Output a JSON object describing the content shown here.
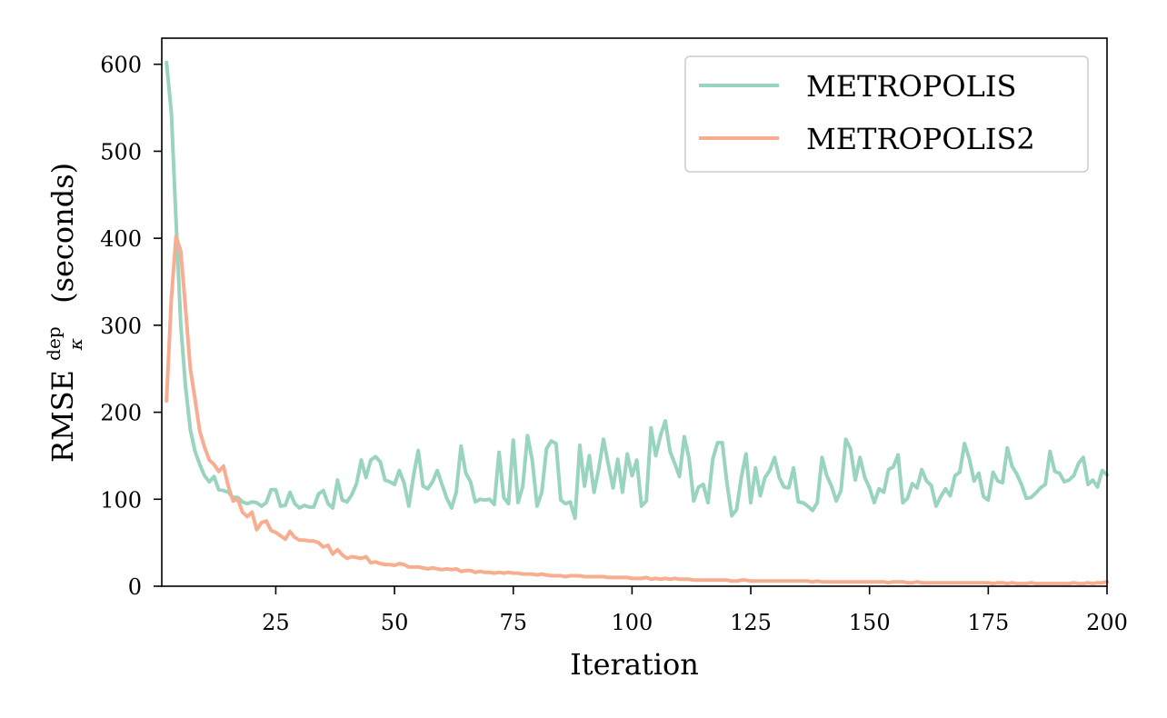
{
  "chart_data": {
    "type": "line",
    "title": "",
    "xlabel": "Iteration",
    "ylabel": {
      "main": "RMSE",
      "subscript": "κ",
      "superscript": "dep",
      "unit": "(seconds)"
    },
    "xlim": [
      1,
      200
    ],
    "ylim": [
      0,
      630
    ],
    "xticks": [
      25,
      50,
      75,
      100,
      125,
      150,
      175,
      200
    ],
    "yticks": [
      0,
      100,
      200,
      300,
      400,
      500,
      600
    ],
    "grid": false,
    "legend": "top-right",
    "series": [
      {
        "name": "METROPOLIS",
        "color": "#99d4bf",
        "x": [
          2,
          3,
          4,
          5,
          6,
          7,
          8,
          9,
          10,
          11,
          12,
          13,
          14,
          15,
          16,
          17,
          18,
          19,
          20,
          21,
          22,
          23,
          24,
          25,
          26,
          27,
          28,
          29,
          30,
          31,
          32,
          33,
          34,
          35,
          36,
          37,
          38,
          39,
          40,
          41,
          42,
          43,
          44,
          45,
          46,
          47,
          48,
          49,
          50,
          51,
          52,
          53,
          54,
          55,
          56,
          57,
          58,
          59,
          60,
          61,
          62,
          63,
          64,
          65,
          66,
          67,
          68,
          69,
          70,
          71,
          72,
          73,
          74,
          75,
          76,
          77,
          78,
          79,
          80,
          81,
          82,
          83,
          84,
          85,
          86,
          87,
          88,
          89,
          90,
          91,
          92,
          93,
          94,
          95,
          96,
          97,
          98,
          99,
          100,
          101,
          102,
          103,
          104,
          105,
          106,
          107,
          108,
          109,
          110,
          111,
          112,
          113,
          114,
          115,
          116,
          117,
          118,
          119,
          120,
          121,
          122,
          123,
          124,
          125,
          126,
          127,
          128,
          129,
          130,
          131,
          132,
          133,
          134,
          135,
          136,
          137,
          138,
          139,
          140,
          141,
          142,
          143,
          144,
          145,
          146,
          147,
          148,
          149,
          150,
          151,
          152,
          153,
          154,
          155,
          156,
          157,
          158,
          159,
          160,
          161,
          162,
          163,
          164,
          165,
          166,
          167,
          168,
          169,
          170,
          171,
          172,
          173,
          174,
          175,
          176,
          177,
          178,
          179,
          180,
          181,
          182,
          183,
          184,
          185,
          186,
          187,
          188,
          189,
          190,
          191,
          192,
          193,
          194,
          195,
          196,
          197,
          198,
          199,
          200
        ],
        "y": [
          602,
          545,
          420,
          300,
          230,
          180,
          155,
          140,
          127,
          120,
          126,
          111,
          110,
          108,
          102,
          102,
          97,
          95,
          97,
          96,
          92,
          96,
          111,
          111,
          92,
          93,
          108,
          95,
          90,
          93,
          91,
          91,
          106,
          110,
          95,
          90,
          122,
          99,
          97,
          105,
          118,
          145,
          125,
          145,
          149,
          143,
          122,
          120,
          117,
          133,
          119,
          92,
          127,
          156,
          115,
          112,
          120,
          133,
          117,
          101,
          90,
          108,
          161,
          130,
          120,
          97,
          100,
          99,
          100,
          94,
          154,
          102,
          95,
          168,
          96,
          115,
          173,
          145,
          92,
          108,
          158,
          167,
          164,
          99,
          95,
          97,
          78,
          162,
          115,
          150,
          108,
          135,
          169,
          140,
          113,
          146,
          108,
          152,
          127,
          145,
          92,
          98,
          182,
          150,
          173,
          190,
          155,
          141,
          126,
          172,
          147,
          98,
          114,
          117,
          96,
          146,
          165,
          165,
          118,
          81,
          88,
          125,
          152,
          96,
          136,
          104,
          125,
          133,
          148,
          125,
          114,
          113,
          136,
          97,
          96,
          92,
          87,
          96,
          148,
          127,
          115,
          98,
          110,
          169,
          158,
          122,
          148,
          125,
          113,
          96,
          112,
          108,
          134,
          137,
          151,
          96,
          101,
          118,
          113,
          134,
          121,
          116,
          92,
          103,
          112,
          104,
          127,
          131,
          164,
          147,
          121,
          130,
          103,
          99,
          131,
          121,
          119,
          159,
          138,
          129,
          117,
          101,
          102,
          107,
          113,
          117,
          155,
          132,
          130,
          120,
          122,
          127,
          141,
          148,
          117,
          122,
          114,
          133,
          128
        ]
      },
      {
        "name": "METROPOLIS2",
        "color": "#f7ae90",
        "x": [
          2,
          3,
          4,
          5,
          6,
          7,
          8,
          9,
          10,
          11,
          12,
          13,
          14,
          15,
          16,
          17,
          18,
          19,
          20,
          21,
          22,
          23,
          24,
          25,
          26,
          27,
          28,
          29,
          30,
          31,
          32,
          33,
          34,
          35,
          36,
          37,
          38,
          39,
          40,
          41,
          42,
          43,
          44,
          45,
          46,
          47,
          48,
          49,
          50,
          51,
          52,
          53,
          54,
          55,
          56,
          57,
          58,
          59,
          60,
          61,
          62,
          63,
          64,
          65,
          66,
          67,
          68,
          69,
          70,
          71,
          72,
          73,
          74,
          75,
          76,
          77,
          78,
          79,
          80,
          81,
          82,
          83,
          84,
          85,
          86,
          87,
          88,
          89,
          90,
          91,
          92,
          93,
          94,
          95,
          96,
          97,
          98,
          99,
          100,
          101,
          102,
          103,
          104,
          105,
          106,
          107,
          108,
          109,
          110,
          111,
          112,
          113,
          114,
          115,
          116,
          117,
          118,
          119,
          120,
          121,
          122,
          123,
          124,
          125,
          126,
          127,
          128,
          129,
          130,
          131,
          132,
          133,
          134,
          135,
          136,
          137,
          138,
          139,
          140,
          141,
          142,
          143,
          144,
          145,
          146,
          147,
          148,
          149,
          150,
          151,
          152,
          153,
          154,
          155,
          156,
          157,
          158,
          159,
          160,
          161,
          162,
          163,
          164,
          165,
          166,
          167,
          168,
          169,
          170,
          171,
          172,
          173,
          174,
          175,
          176,
          177,
          178,
          179,
          180,
          181,
          182,
          183,
          184,
          185,
          186,
          187,
          188,
          189,
          190,
          191,
          192,
          193,
          194,
          195,
          196,
          197,
          198,
          199,
          200
        ],
        "y": [
          213,
          330,
          402,
          385,
          320,
          250,
          215,
          178,
          160,
          145,
          140,
          132,
          138,
          115,
          98,
          100,
          85,
          80,
          85,
          65,
          73,
          75,
          64,
          62,
          58,
          54,
          63,
          56,
          53,
          53,
          52,
          52,
          50,
          45,
          47,
          37,
          42,
          36,
          32,
          34,
          33,
          32,
          34,
          27,
          28,
          26,
          25,
          25,
          24,
          26,
          25,
          22,
          22,
          22,
          21,
          20,
          21,
          20,
          19,
          20,
          19,
          20,
          17,
          18,
          18,
          16,
          17,
          16,
          16,
          15,
          16,
          15,
          16,
          15,
          15,
          14,
          14,
          14,
          13,
          14,
          13,
          12,
          12,
          12,
          11,
          12,
          12,
          12,
          11,
          11,
          11,
          11,
          11,
          10,
          10,
          10,
          10,
          10,
          9,
          9,
          9,
          10,
          8,
          9,
          8,
          9,
          8,
          9,
          8,
          8,
          8,
          7,
          7,
          7,
          7,
          7,
          7,
          7,
          7,
          6,
          6,
          7,
          7,
          6,
          6,
          6,
          6,
          6,
          6,
          6,
          6,
          6,
          6,
          6,
          6,
          6,
          5,
          6,
          5,
          5,
          5,
          5,
          5,
          5,
          5,
          5,
          5,
          5,
          5,
          5,
          5,
          5,
          4,
          5,
          5,
          5,
          4,
          4,
          5,
          4,
          4,
          4,
          4,
          4,
          4,
          4,
          4,
          4,
          4,
          4,
          4,
          4,
          4,
          4,
          3,
          4,
          4,
          3,
          4,
          3,
          3,
          3,
          4,
          3,
          3,
          3,
          3,
          3,
          3,
          3,
          3,
          4,
          3,
          3,
          4,
          3,
          4,
          4,
          5
        ]
      }
    ]
  }
}
